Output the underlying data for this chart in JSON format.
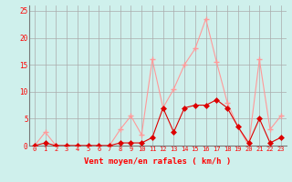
{
  "title": "",
  "xlabel": "Vent moyen/en rafales ( km/h )",
  "background_color": "#cff0ec",
  "grid_color": "#aaaaaa",
  "xlim": [
    -0.5,
    23.5
  ],
  "ylim": [
    0,
    26
  ],
  "yticks": [
    0,
    5,
    10,
    15,
    20,
    25
  ],
  "xticks": [
    0,
    1,
    2,
    3,
    4,
    5,
    6,
    7,
    8,
    9,
    10,
    11,
    12,
    13,
    14,
    15,
    16,
    17,
    18,
    19,
    20,
    21,
    22,
    23
  ],
  "hours": [
    0,
    1,
    2,
    3,
    4,
    5,
    6,
    7,
    8,
    9,
    10,
    11,
    12,
    13,
    14,
    15,
    16,
    17,
    18,
    19,
    20,
    21,
    22,
    23
  ],
  "wind_avg": [
    0.0,
    0.5,
    0.0,
    0.0,
    0.0,
    0.0,
    0.0,
    0.0,
    0.5,
    0.5,
    0.5,
    1.5,
    7.0,
    2.5,
    7.0,
    7.5,
    7.5,
    8.5,
    7.0,
    3.5,
    0.5,
    5.0,
    0.5,
    1.5
  ],
  "wind_gust": [
    0.0,
    2.5,
    0.0,
    0.0,
    0.0,
    0.0,
    0.0,
    0.0,
    3.0,
    5.5,
    2.0,
    16.0,
    7.0,
    10.5,
    15.0,
    18.0,
    23.5,
    15.5,
    8.0,
    3.5,
    0.0,
    16.0,
    3.0,
    5.5
  ],
  "avg_color": "#dd0000",
  "gust_color": "#ff9999",
  "line_width": 0.8,
  "marker_size_avg": 3,
  "marker_size_gust": 4
}
